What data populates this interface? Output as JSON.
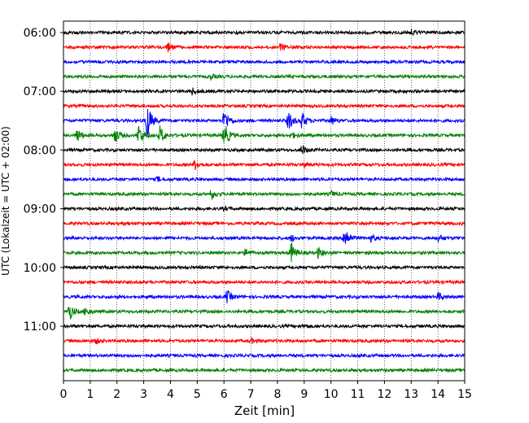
{
  "chart_data": {
    "type": "line",
    "title": "",
    "xlabel": "Zeit  [min]",
    "ylabel": "UTC (Lokalzeit = UTC + 02:00)",
    "xlim": [
      0,
      15
    ],
    "x_ticks": [
      "0",
      "1",
      "2",
      "3",
      "4",
      "5",
      "6",
      "7",
      "8",
      "9",
      "10",
      "11",
      "12",
      "13",
      "14",
      "15"
    ],
    "y_ticks": [
      "06:00",
      "07:00",
      "08:00",
      "09:00",
      "10:00",
      "11:00"
    ],
    "grid": "vertical dotted at each minute",
    "row_interval_min": 15,
    "color_cycle": [
      "#000000",
      "#ff0000",
      "#0000ff",
      "#008000"
    ],
    "series": [
      {
        "row": 0,
        "start": "06:00",
        "events": [
          {
            "t": 13.0,
            "amp": 0.3
          }
        ]
      },
      {
        "row": 1,
        "start": "06:15",
        "events": [
          {
            "t": 3.9,
            "amp": 0.6
          },
          {
            "t": 8.1,
            "amp": 0.7
          }
        ]
      },
      {
        "row": 2,
        "start": "06:30",
        "events": []
      },
      {
        "row": 3,
        "start": "06:45",
        "events": [
          {
            "t": 5.5,
            "amp": 0.3
          }
        ]
      },
      {
        "row": 4,
        "start": "07:00",
        "events": [
          {
            "t": 4.8,
            "amp": 0.4
          }
        ]
      },
      {
        "row": 5,
        "start": "07:15",
        "events": []
      },
      {
        "row": 6,
        "start": "07:30",
        "events": [
          {
            "t": 3.1,
            "amp": 2.5
          },
          {
            "t": 6.0,
            "amp": 1.5
          },
          {
            "t": 8.4,
            "amp": 1.2
          },
          {
            "t": 8.9,
            "amp": 1.0
          },
          {
            "t": 10.0,
            "amp": 0.5
          }
        ]
      },
      {
        "row": 7,
        "start": "07:45",
        "events": [
          {
            "t": 0.5,
            "amp": 0.8
          },
          {
            "t": 1.9,
            "amp": 1.0
          },
          {
            "t": 2.8,
            "amp": 1.3
          },
          {
            "t": 3.6,
            "amp": 1.1
          },
          {
            "t": 6.0,
            "amp": 1.6
          },
          {
            "t": 8.5,
            "amp": 0.4
          }
        ]
      },
      {
        "row": 8,
        "start": "08:00",
        "events": [
          {
            "t": 8.9,
            "amp": 0.6
          }
        ]
      },
      {
        "row": 9,
        "start": "08:15",
        "events": [
          {
            "t": 4.9,
            "amp": 0.6
          },
          {
            "t": 9.0,
            "amp": 0.3
          }
        ]
      },
      {
        "row": 10,
        "start": "08:30",
        "events": [
          {
            "t": 3.5,
            "amp": 0.3
          }
        ]
      },
      {
        "row": 11,
        "start": "08:45",
        "events": [
          {
            "t": 5.5,
            "amp": 0.6
          },
          {
            "t": 10.0,
            "amp": 0.3
          }
        ]
      },
      {
        "row": 12,
        "start": "09:00",
        "events": [
          {
            "t": 6.0,
            "amp": 0.2
          }
        ]
      },
      {
        "row": 13,
        "start": "09:15",
        "events": [
          {
            "t": 2.3,
            "amp": 0.2
          }
        ]
      },
      {
        "row": 14,
        "start": "09:30",
        "events": [
          {
            "t": 8.5,
            "amp": 0.4
          },
          {
            "t": 10.5,
            "amp": 1.6
          },
          {
            "t": 11.5,
            "amp": 0.4
          },
          {
            "t": 14.0,
            "amp": 0.4
          }
        ]
      },
      {
        "row": 15,
        "start": "09:45",
        "events": [
          {
            "t": 6.8,
            "amp": 0.5
          },
          {
            "t": 8.5,
            "amp": 1.2
          },
          {
            "t": 9.5,
            "amp": 0.6
          }
        ]
      },
      {
        "row": 16,
        "start": "10:00",
        "events": []
      },
      {
        "row": 17,
        "start": "10:15",
        "events": []
      },
      {
        "row": 18,
        "start": "10:30",
        "events": [
          {
            "t": 6.1,
            "amp": 0.8
          },
          {
            "t": 14.0,
            "amp": 0.5
          }
        ]
      },
      {
        "row": 19,
        "start": "10:45",
        "events": [
          {
            "t": 0.2,
            "amp": 1.1
          },
          {
            "t": 0.8,
            "amp": 0.5
          }
        ]
      },
      {
        "row": 20,
        "start": "11:00",
        "events": [
          {
            "t": 9.0,
            "amp": 0.2
          }
        ]
      },
      {
        "row": 21,
        "start": "11:15",
        "events": [
          {
            "t": 1.2,
            "amp": 0.3
          },
          {
            "t": 7.0,
            "amp": 0.3
          }
        ]
      },
      {
        "row": 22,
        "start": "11:30",
        "events": []
      },
      {
        "row": 23,
        "start": "11:45",
        "events": []
      }
    ]
  }
}
